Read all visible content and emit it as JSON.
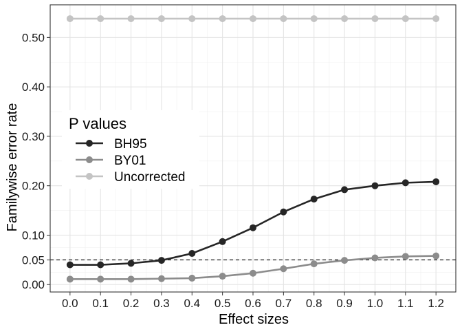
{
  "chart_data": {
    "type": "line",
    "title": "",
    "xlabel": "Effect sizes",
    "ylabel": "Familywise error rate",
    "x": [
      0.0,
      0.1,
      0.2,
      0.3,
      0.4,
      0.5,
      0.6,
      0.7,
      0.8,
      0.9,
      1.0,
      1.1,
      1.2
    ],
    "x_tick_labels": [
      "0.0",
      "0.1",
      "0.2",
      "0.3",
      "0.4",
      "0.5",
      "0.6",
      "0.7",
      "0.8",
      "0.9",
      "1.0",
      "1.1",
      "1.2"
    ],
    "y_ticks": [
      0.0,
      0.05,
      0.1,
      0.2,
      0.3,
      0.4,
      0.5
    ],
    "y_tick_labels": [
      "0.00",
      "0.05",
      "0.10",
      "0.20",
      "0.30",
      "0.40",
      "0.50"
    ],
    "xlim": [
      -0.065,
      1.265
    ],
    "ylim": [
      -0.015,
      0.566
    ],
    "grid": true,
    "reference_line": {
      "y": 0.05,
      "style": "dashed"
    },
    "legend": {
      "title": "P values",
      "placement": "center-left"
    },
    "series": [
      {
        "name": "BH95",
        "color": "#262626",
        "values": [
          0.04,
          0.04,
          0.043,
          0.049,
          0.063,
          0.087,
          0.115,
          0.147,
          0.173,
          0.192,
          0.2,
          0.206,
          0.208
        ]
      },
      {
        "name": "BY01",
        "color": "#8c8c8c",
        "values": [
          0.011,
          0.011,
          0.011,
          0.012,
          0.013,
          0.017,
          0.023,
          0.032,
          0.042,
          0.049,
          0.054,
          0.057,
          0.058
        ]
      },
      {
        "name": "Uncorrected",
        "color": "#c4c4c4",
        "values": [
          0.538,
          0.538,
          0.538,
          0.538,
          0.538,
          0.538,
          0.538,
          0.538,
          0.538,
          0.538,
          0.538,
          0.538,
          0.538
        ]
      }
    ]
  }
}
